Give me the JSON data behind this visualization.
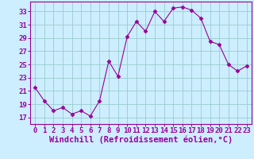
{
  "x": [
    0,
    1,
    2,
    3,
    4,
    5,
    6,
    7,
    8,
    9,
    10,
    11,
    12,
    13,
    14,
    15,
    16,
    17,
    18,
    19,
    20,
    21,
    22,
    23
  ],
  "y": [
    21.5,
    19.5,
    18.0,
    18.5,
    17.5,
    18.0,
    17.2,
    19.5,
    25.5,
    23.2,
    29.2,
    31.5,
    30.0,
    33.0,
    31.5,
    33.5,
    33.7,
    33.2,
    32.0,
    28.5,
    28.0,
    25.0,
    24.0,
    24.8
  ],
  "line_color": "#990099",
  "marker": "D",
  "marker_size": 2.5,
  "bg_color": "#cceeff",
  "grid_color": "#99cccc",
  "xlabel": "Windchill (Refroidissement éolien,°C)",
  "xlabel_color": "#990099",
  "xlabel_fontsize": 7.5,
  "tick_color": "#990099",
  "tick_fontsize": 6.5,
  "ylim": [
    16.0,
    34.5
  ],
  "yticks": [
    17,
    19,
    21,
    23,
    25,
    27,
    29,
    31,
    33
  ],
  "xlim": [
    -0.5,
    23.5
  ],
  "xticks": [
    0,
    1,
    2,
    3,
    4,
    5,
    6,
    7,
    8,
    9,
    10,
    11,
    12,
    13,
    14,
    15,
    16,
    17,
    18,
    19,
    20,
    21,
    22,
    23
  ]
}
